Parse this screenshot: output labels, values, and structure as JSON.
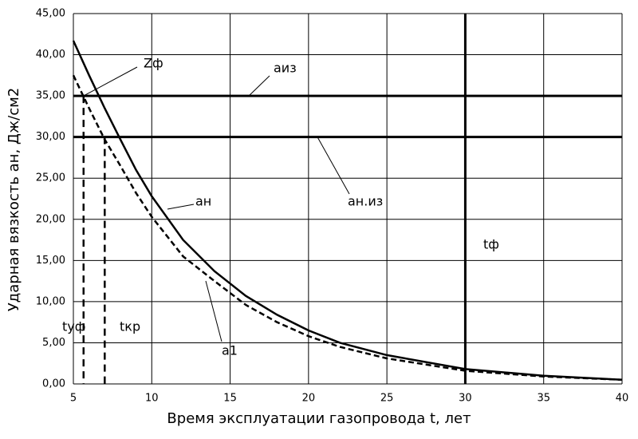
{
  "chart_data": {
    "type": "line",
    "x_label": "Время эксплуатации газопровода t, лет",
    "y_label": "Ударная вязкость aн, Дж/см2",
    "x": [
      5,
      6,
      7,
      8,
      9,
      10,
      12,
      14,
      16,
      18,
      20,
      22,
      25,
      30,
      35,
      40
    ],
    "series": [
      {
        "name": "aн",
        "color": "#000000",
        "dashed": false,
        "values": [
          41.7,
          37.5,
          33.5,
          29.7,
          26.0,
          22.8,
          17.5,
          13.7,
          10.7,
          8.4,
          6.5,
          5.0,
          3.5,
          1.8,
          1.0,
          0.5
        ]
      },
      {
        "name": "a1",
        "color": "#000000",
        "dashed": true,
        "values": [
          37.5,
          33.5,
          29.7,
          26.5,
          23.2,
          20.3,
          15.5,
          12.5,
          9.6,
          7.5,
          5.8,
          4.5,
          3.1,
          1.6,
          0.9,
          0.5
        ]
      }
    ],
    "hlines": [
      {
        "value": 35,
        "label": "aиз"
      },
      {
        "value": 30,
        "label": "aн.из"
      }
    ],
    "vlines": [
      {
        "value": 30,
        "label": "tф"
      }
    ],
    "drop_lines": [
      {
        "x": 5.65,
        "y": 35,
        "label": "tуф"
      },
      {
        "x": 7,
        "y": 30,
        "label": "tкр"
      }
    ],
    "annotations": [
      "Zф"
    ],
    "xlim": [
      5,
      40
    ],
    "xticks": [
      5,
      10,
      15,
      20,
      25,
      30,
      35,
      40
    ],
    "ylim": [
      0,
      45
    ],
    "yticks": [
      {
        "value": 0,
        "label": "0,00"
      },
      {
        "value": 5,
        "label": "5,00"
      },
      {
        "value": 10,
        "label": "10,00"
      },
      {
        "value": 15,
        "label": "15,00"
      },
      {
        "value": 20,
        "label": "20,00"
      },
      {
        "value": 25,
        "label": "25,00"
      },
      {
        "value": 30,
        "label": "30,00"
      },
      {
        "value": 35,
        "label": "35,00"
      },
      {
        "value": 40,
        "label": "40,00"
      },
      {
        "value": 45,
        "label": "45,00"
      }
    ],
    "grid": true
  }
}
